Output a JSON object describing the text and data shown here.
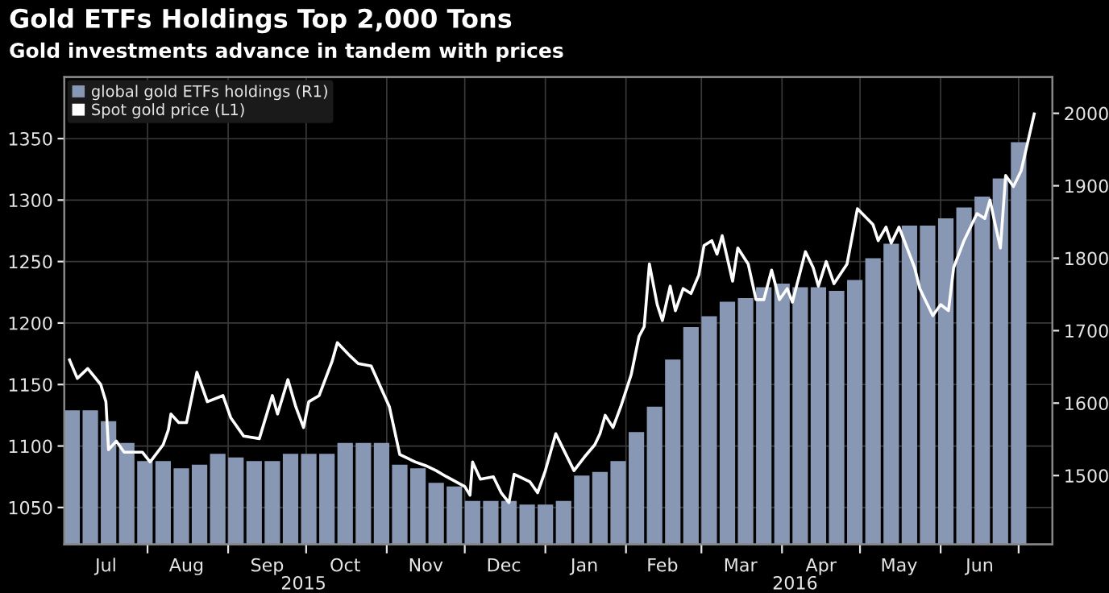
{
  "chart_data": {
    "type": "bar",
    "title": "Gold ETFs Holdings Top 2,000 Tons",
    "subtitle": "Gold investments advance in tandem with prices",
    "series": [
      {
        "name": "global gold ETFs holdings (R1)",
        "axis": "y2",
        "color": "#8797b4",
        "x": [
          "2015-07-03",
          "2015-07-10",
          "2015-07-17",
          "2015-07-24",
          "2015-07-31",
          "2015-08-07",
          "2015-08-14",
          "2015-08-21",
          "2015-08-28",
          "2015-09-04",
          "2015-09-11",
          "2015-09-18",
          "2015-09-25",
          "2015-10-02",
          "2015-10-09",
          "2015-10-16",
          "2015-10-23",
          "2015-10-30",
          "2015-11-06",
          "2015-11-13",
          "2015-11-20",
          "2015-11-27",
          "2015-12-04",
          "2015-12-11",
          "2015-12-18",
          "2015-12-25",
          "2016-01-01",
          "2016-01-08",
          "2016-01-15",
          "2016-01-22",
          "2016-01-29",
          "2016-02-05",
          "2016-02-12",
          "2016-02-19",
          "2016-02-26",
          "2016-03-04",
          "2016-03-11",
          "2016-03-18",
          "2016-03-25",
          "2016-04-01",
          "2016-04-08",
          "2016-04-15",
          "2016-04-22",
          "2016-04-29",
          "2016-05-06",
          "2016-05-13",
          "2016-05-20",
          "2016-05-27",
          "2016-06-03",
          "2016-06-10",
          "2016-06-17",
          "2016-06-24",
          "2016-07-01"
        ],
        "values": [
          1590,
          1590,
          1575,
          1545,
          1520,
          1520,
          1510,
          1515,
          1530,
          1525,
          1520,
          1520,
          1530,
          1530,
          1530,
          1545,
          1545,
          1545,
          1515,
          1510,
          1490,
          1485,
          1465,
          1465,
          1465,
          1460,
          1460,
          1465,
          1500,
          1505,
          1520,
          1560,
          1595,
          1660,
          1705,
          1720,
          1740,
          1745,
          1760,
          1765,
          1760,
          1760,
          1755,
          1770,
          1800,
          1820,
          1845,
          1845,
          1855,
          1870,
          1885,
          1910,
          1960
        ]
      },
      {
        "name": "Spot gold price (L1)",
        "type": "line",
        "axis": "y",
        "color": "#ffffff",
        "x": [
          "2015-07-02",
          "2015-07-05",
          "2015-07-09",
          "2015-07-14",
          "2015-07-16",
          "2015-07-17",
          "2015-07-20",
          "2015-07-23",
          "2015-07-30",
          "2015-08-02",
          "2015-08-07",
          "2015-08-09",
          "2015-08-10",
          "2015-08-13",
          "2015-08-16",
          "2015-08-20",
          "2015-08-24",
          "2015-08-30",
          "2015-09-02",
          "2015-09-07",
          "2015-09-13",
          "2015-09-18",
          "2015-09-20",
          "2015-09-24",
          "2015-09-27",
          "2015-09-30",
          "2015-10-02",
          "2015-10-06",
          "2015-10-11",
          "2015-10-13",
          "2015-10-18",
          "2015-10-21",
          "2015-10-26",
          "2015-11-02",
          "2015-11-06",
          "2015-11-12",
          "2015-11-16",
          "2015-11-20",
          "2015-11-24",
          "2015-12-01",
          "2015-12-03",
          "2015-12-04",
          "2015-12-07",
          "2015-12-12",
          "2015-12-15",
          "2015-12-18",
          "2015-12-20",
          "2015-12-26",
          "2015-12-29",
          "2016-01-01",
          "2016-01-05",
          "2016-01-08",
          "2016-01-12",
          "2016-01-16",
          "2016-01-20",
          "2016-01-22",
          "2016-01-24",
          "2016-01-27",
          "2016-01-30",
          "2016-02-03",
          "2016-02-06",
          "2016-02-08",
          "2016-02-10",
          "2016-02-13",
          "2016-02-15",
          "2016-02-18",
          "2016-02-20",
          "2016-02-23",
          "2016-02-26",
          "2016-02-29",
          "2016-03-02",
          "2016-03-05",
          "2016-03-07",
          "2016-03-09",
          "2016-03-13",
          "2016-03-15",
          "2016-03-19",
          "2016-03-22",
          "2016-03-25",
          "2016-03-28",
          "2016-03-31",
          "2016-04-03",
          "2016-04-05",
          "2016-04-10",
          "2016-04-13",
          "2016-04-15",
          "2016-04-18",
          "2016-04-21",
          "2016-04-26",
          "2016-04-30",
          "2016-05-06",
          "2016-05-08",
          "2016-05-11",
          "2016-05-13",
          "2016-05-16",
          "2016-05-22",
          "2016-05-24",
          "2016-05-29",
          "2016-06-01",
          "2016-06-04",
          "2016-06-06",
          "2016-06-10",
          "2016-06-15",
          "2016-06-18",
          "2016-06-20",
          "2016-06-22",
          "2016-06-24",
          "2016-06-26",
          "2016-06-29",
          "2016-07-02",
          "2016-07-07"
        ],
        "values": [
          1170,
          1155,
          1163,
          1150,
          1136,
          1097,
          1104,
          1095,
          1095,
          1087,
          1101,
          1113,
          1126,
          1119,
          1119,
          1160,
          1136,
          1141,
          1123,
          1108,
          1106,
          1141,
          1126,
          1154,
          1132,
          1115,
          1136,
          1141,
          1169,
          1184,
          1173,
          1167,
          1165,
          1132,
          1093,
          1087,
          1084,
          1080,
          1075,
          1067,
          1060,
          1087,
          1073,
          1075,
          1062,
          1054,
          1077,
          1071,
          1062,
          1080,
          1110,
          1097,
          1080,
          1091,
          1101,
          1110,
          1125,
          1115,
          1132,
          1158,
          1189,
          1197,
          1248,
          1215,
          1202,
          1230,
          1210,
          1228,
          1224,
          1239,
          1263,
          1267,
          1256,
          1271,
          1234,
          1261,
          1248,
          1219,
          1219,
          1243,
          1219,
          1228,
          1217,
          1258,
          1245,
          1230,
          1250,
          1232,
          1248,
          1293,
          1280,
          1267,
          1278,
          1265,
          1278,
          1245,
          1228,
          1206,
          1215,
          1210,
          1245,
          1267,
          1289,
          1285,
          1300,
          1280,
          1261,
          1320,
          1311,
          1324,
          1370
        ]
      }
    ],
    "xlim": [
      "2015-06-30",
      "2016-07-14"
    ],
    "xticks": [
      {
        "value": "2015-07-16",
        "label": "Jul"
      },
      {
        "value": "2015-08-01",
        "label": null
      },
      {
        "value": "2015-08-16",
        "label": "Aug"
      },
      {
        "value": "2015-09-01",
        "label": null
      },
      {
        "value": "2015-09-16",
        "label": "Sep"
      },
      {
        "value": "2015-10-01",
        "label": null
      },
      {
        "value": "2015-10-16",
        "label": "Oct"
      },
      {
        "value": "2015-11-01",
        "label": null
      },
      {
        "value": "2015-11-16",
        "label": "Nov"
      },
      {
        "value": "2015-12-01",
        "label": null
      },
      {
        "value": "2015-12-16",
        "label": "Dec"
      },
      {
        "value": "2016-01-01",
        "label": null
      },
      {
        "value": "2016-01-16",
        "label": "Jan"
      },
      {
        "value": "2016-02-01",
        "label": null
      },
      {
        "value": "2016-02-15",
        "label": "Feb"
      },
      {
        "value": "2016-03-01",
        "label": null
      },
      {
        "value": "2016-03-16",
        "label": "Mar"
      },
      {
        "value": "2016-04-01",
        "label": null
      },
      {
        "value": "2016-04-16",
        "label": "Apr"
      },
      {
        "value": "2016-05-01",
        "label": null
      },
      {
        "value": "2016-05-16",
        "label": "May"
      },
      {
        "value": "2016-06-01",
        "label": null
      },
      {
        "value": "2016-06-16",
        "label": "Jun"
      },
      {
        "value": "2016-07-01",
        "label": null
      }
    ],
    "ylim": [
      1020,
      1400
    ],
    "yticks": [
      1050,
      1100,
      1150,
      1200,
      1250,
      1300,
      1350
    ],
    "y2lim": [
      1405,
      2050
    ],
    "y2ticks": [
      1500,
      1600,
      1700,
      1800,
      1900,
      2000
    ],
    "annotations": [
      {
        "text": "2015",
        "x": "2015-09-30"
      },
      {
        "text": "2016",
        "x": "2016-04-06"
      }
    ],
    "grid": true,
    "legend": "top left"
  }
}
